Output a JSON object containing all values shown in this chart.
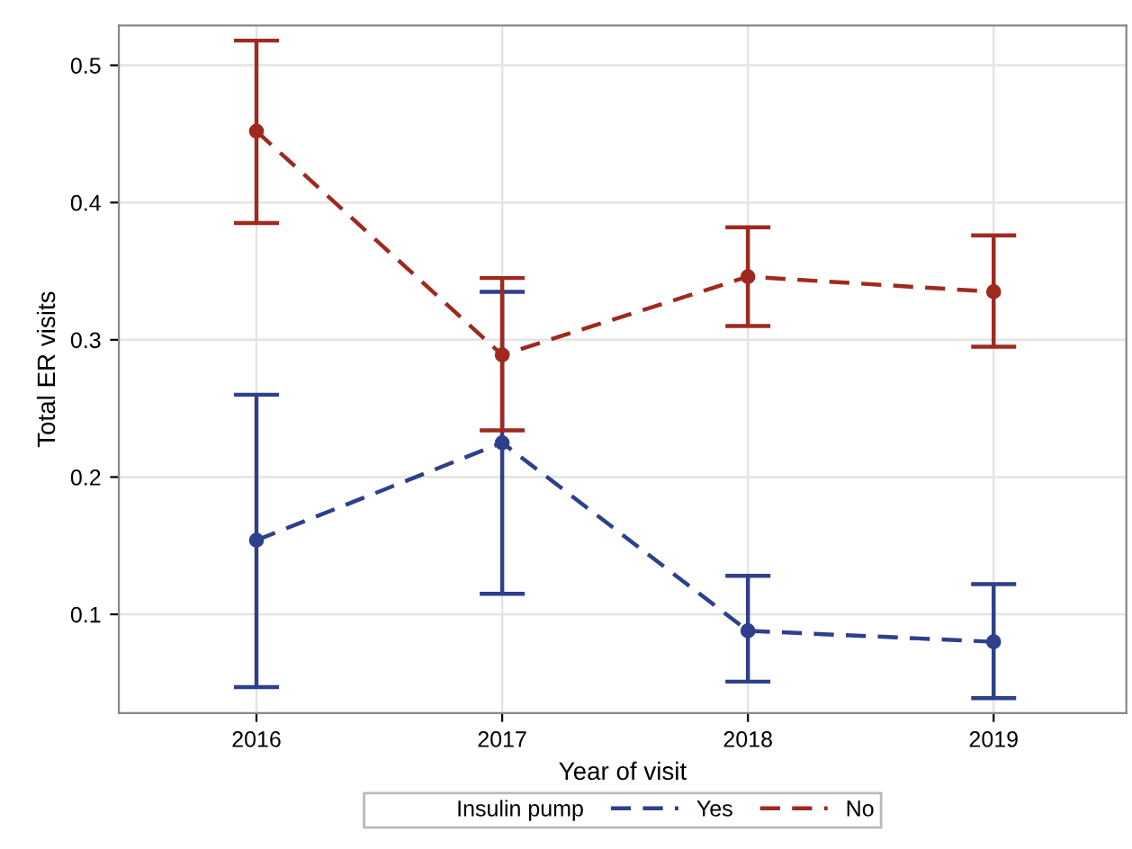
{
  "chart_data": {
    "type": "line",
    "xlabel": "Year of visit",
    "ylabel": "Total ER visits",
    "legend_title": "Insulin pump",
    "x": [
      2016,
      2017,
      2018,
      2019
    ],
    "series": [
      {
        "name": "Yes",
        "color": "#2e3f8c",
        "values": [
          0.154,
          0.225,
          0.088,
          0.08
        ],
        "errors": [
          [
            0.047,
            0.26
          ],
          [
            0.115,
            0.335
          ],
          [
            0.051,
            0.128
          ],
          [
            0.039,
            0.122
          ]
        ]
      },
      {
        "name": "No",
        "color": "#9e2a1f",
        "values": [
          0.452,
          0.289,
          0.346,
          0.335
        ],
        "errors": [
          [
            0.385,
            0.518
          ],
          [
            0.234,
            0.345
          ],
          [
            0.31,
            0.382
          ],
          [
            0.295,
            0.376
          ]
        ]
      }
    ],
    "xlim": [
      2015.44,
      2019.54
    ],
    "xticks": [
      2016,
      2017,
      2018,
      2019
    ],
    "ylim": [
      0.028,
      0.529
    ],
    "yticks": [
      0.1,
      0.2,
      0.3,
      0.4,
      0.5
    ],
    "grid": true,
    "legend": "bottom",
    "marker": "circle",
    "line_style": "dashed"
  }
}
